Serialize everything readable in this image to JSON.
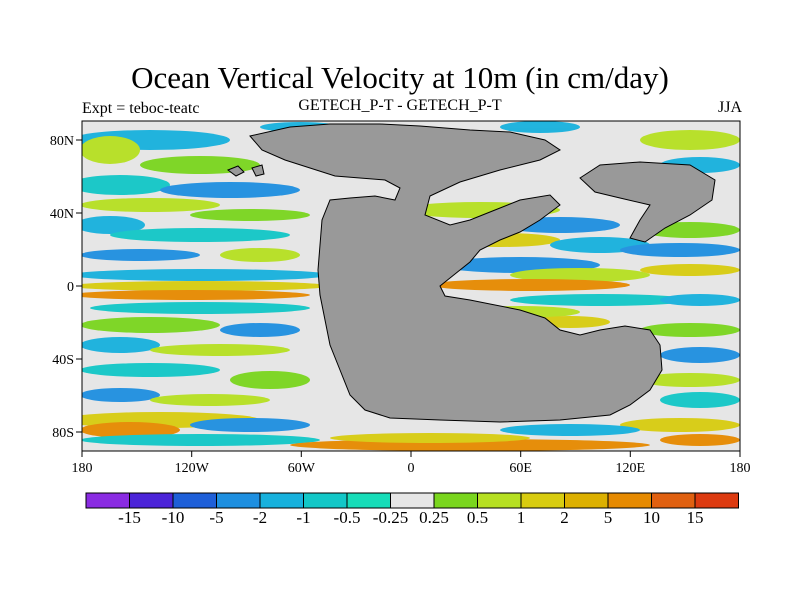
{
  "title": "Ocean Vertical Velocity at 10m (in cm/day)",
  "subtitle_left": "Expt = teboc-teatc",
  "subtitle_center": "GETECH_P-T - GETECH_P-T",
  "subtitle_right": "JJA",
  "x_ticks": [
    "180",
    "120W",
    "60W",
    "0",
    "60E",
    "120E",
    "180"
  ],
  "y_ticks": [
    "80N",
    "40N",
    "0",
    "40S",
    "80S"
  ],
  "colorbar": {
    "labels": [
      "-15",
      "-10",
      "-5",
      "-2",
      "-1",
      "-0.5",
      "-0.25",
      "0.25",
      "0.5",
      "1",
      "2",
      "5",
      "10",
      "15"
    ],
    "colors": [
      "#8a2be2",
      "#4b24d8",
      "#1e5fd8",
      "#1e8fe0",
      "#17b1dd",
      "#12c7c7",
      "#17ddb9",
      "#e6e6e6",
      "#7ad61e",
      "#b6e022",
      "#d8cc10",
      "#dcb000",
      "#e68a00",
      "#e06010",
      "#dc3a10"
    ]
  },
  "colors": {
    "land": "#999999",
    "neutral": "#e6e6e6",
    "blue": "#1e8fe0",
    "cyan": "#17b1dd",
    "teal": "#12c7c7",
    "green": "#7ad61e",
    "yellowgreen": "#b6e022",
    "yellow": "#d8cc10",
    "orange": "#e68a00",
    "red": "#dc3a10"
  }
}
